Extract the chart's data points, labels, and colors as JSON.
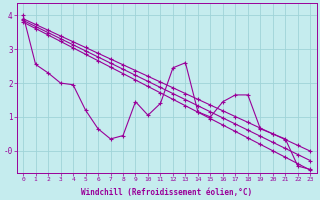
{
  "xlabel": "Windchill (Refroidissement éolien,°C)",
  "xlim": [
    -0.5,
    23.5
  ],
  "ylim": [
    -0.65,
    4.35
  ],
  "bg_color": "#c5ecee",
  "grid_color": "#9fd4d8",
  "line_color": "#990099",
  "x": [
    0,
    1,
    2,
    3,
    4,
    5,
    6,
    7,
    8,
    9,
    10,
    11,
    12,
    13,
    14,
    15,
    16,
    17,
    18,
    19,
    20,
    21,
    22,
    23
  ],
  "y_jagged": [
    4.0,
    2.55,
    2.3,
    2.0,
    1.95,
    1.2,
    0.65,
    0.35,
    0.45,
    1.45,
    1.05,
    1.4,
    2.45,
    2.6,
    1.15,
    1.0,
    1.45,
    1.65,
    1.65,
    0.65,
    0.5,
    0.35,
    -0.45,
    -0.55
  ],
  "y_trend1": [
    3.9,
    3.73,
    3.56,
    3.39,
    3.22,
    3.05,
    2.88,
    2.71,
    2.54,
    2.37,
    2.2,
    2.03,
    1.86,
    1.69,
    1.52,
    1.35,
    1.18,
    1.01,
    0.84,
    0.67,
    0.5,
    0.33,
    0.16,
    -0.01
  ],
  "y_trend2": [
    3.85,
    3.67,
    3.49,
    3.31,
    3.13,
    2.95,
    2.77,
    2.59,
    2.41,
    2.23,
    2.05,
    1.87,
    1.69,
    1.51,
    1.33,
    1.15,
    0.97,
    0.79,
    0.61,
    0.43,
    0.25,
    0.07,
    -0.11,
    -0.29
  ],
  "y_trend3": [
    3.8,
    3.61,
    3.42,
    3.23,
    3.04,
    2.85,
    2.66,
    2.47,
    2.28,
    2.09,
    1.9,
    1.71,
    1.52,
    1.33,
    1.14,
    0.95,
    0.76,
    0.57,
    0.38,
    0.19,
    0.0,
    -0.19,
    -0.38,
    -0.57
  ],
  "linewidth": 0.8,
  "markersize": 2.5,
  "xtick_fontsize": 4.5,
  "ytick_fontsize": 5.5,
  "xlabel_fontsize": 5.5
}
